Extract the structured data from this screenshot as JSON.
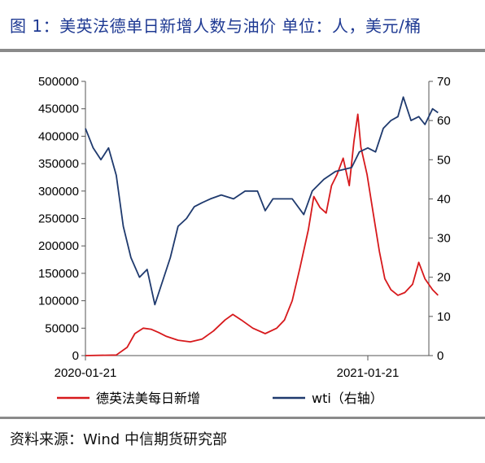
{
  "header": {
    "title": "图 1：美英法德单日新增人数与油价   单位：人，美元/桶"
  },
  "footer": {
    "source": "资料来源：Wind   中信期货研究部"
  },
  "chart_data": {
    "type": "line",
    "title": "美英法德单日新增人数与油价",
    "unit": "单位：人，美元/桶",
    "x_ticks": [
      "2020-01-21",
      "2021-01-21"
    ],
    "y_left": {
      "min": 0,
      "max": 500000,
      "ticks": [
        0,
        50000,
        100000,
        150000,
        200000,
        250000,
        300000,
        350000,
        400000,
        450000,
        500000
      ]
    },
    "y_right": {
      "min": 0,
      "max": 70,
      "ticks": [
        0,
        10,
        20,
        30,
        40,
        50,
        60,
        70
      ]
    },
    "legend_position": "bottom",
    "grid": false,
    "series": [
      {
        "name": "德英法美每日新增",
        "axis": "left",
        "color": "#d7191c",
        "points": [
          [
            "2020-01-21",
            0
          ],
          [
            "2020-03-01",
            1000
          ],
          [
            "2020-03-15",
            15000
          ],
          [
            "2020-03-25",
            40000
          ],
          [
            "2020-04-05",
            50000
          ],
          [
            "2020-04-15",
            48000
          ],
          [
            "2020-04-25",
            42000
          ],
          [
            "2020-05-05",
            35000
          ],
          [
            "2020-05-20",
            28000
          ],
          [
            "2020-06-05",
            25000
          ],
          [
            "2020-06-20",
            30000
          ],
          [
            "2020-07-05",
            45000
          ],
          [
            "2020-07-20",
            65000
          ],
          [
            "2020-07-30",
            75000
          ],
          [
            "2020-08-10",
            65000
          ],
          [
            "2020-08-25",
            50000
          ],
          [
            "2020-09-10",
            40000
          ],
          [
            "2020-09-25",
            50000
          ],
          [
            "2020-10-05",
            65000
          ],
          [
            "2020-10-15",
            100000
          ],
          [
            "2020-10-25",
            160000
          ],
          [
            "2020-11-05",
            230000
          ],
          [
            "2020-11-12",
            290000
          ],
          [
            "2020-11-20",
            270000
          ],
          [
            "2020-11-28",
            260000
          ],
          [
            "2020-12-05",
            310000
          ],
          [
            "2020-12-12",
            330000
          ],
          [
            "2020-12-20",
            360000
          ],
          [
            "2020-12-28",
            310000
          ],
          [
            "2021-01-03",
            390000
          ],
          [
            "2021-01-08",
            440000
          ],
          [
            "2021-01-12",
            380000
          ],
          [
            "2021-01-20",
            330000
          ],
          [
            "2021-01-28",
            260000
          ],
          [
            "2021-02-05",
            190000
          ],
          [
            "2021-02-12",
            140000
          ],
          [
            "2021-02-20",
            120000
          ],
          [
            "2021-03-01",
            110000
          ],
          [
            "2021-03-10",
            115000
          ],
          [
            "2021-03-20",
            130000
          ],
          [
            "2021-03-28",
            170000
          ],
          [
            "2021-04-05",
            140000
          ],
          [
            "2021-04-15",
            120000
          ],
          [
            "2021-04-22",
            110000
          ]
        ]
      },
      {
        "name": "wti（右轴）",
        "axis": "right",
        "color": "#1f3a6e",
        "points": [
          [
            "2020-01-21",
            58
          ],
          [
            "2020-01-31",
            53
          ],
          [
            "2020-02-10",
            50
          ],
          [
            "2020-02-20",
            53
          ],
          [
            "2020-03-01",
            46
          ],
          [
            "2020-03-10",
            33
          ],
          [
            "2020-03-20",
            25
          ],
          [
            "2020-03-31",
            20
          ],
          [
            "2020-04-10",
            22
          ],
          [
            "2020-04-20",
            13
          ],
          [
            "2020-04-30",
            19
          ],
          [
            "2020-05-10",
            25
          ],
          [
            "2020-05-20",
            33
          ],
          [
            "2020-05-31",
            35
          ],
          [
            "2020-06-10",
            38
          ],
          [
            "2020-06-20",
            39
          ],
          [
            "2020-07-01",
            40
          ],
          [
            "2020-07-15",
            41
          ],
          [
            "2020-07-31",
            40
          ],
          [
            "2020-08-15",
            42
          ],
          [
            "2020-08-31",
            42
          ],
          [
            "2020-09-10",
            37
          ],
          [
            "2020-09-20",
            40
          ],
          [
            "2020-10-01",
            40
          ],
          [
            "2020-10-15",
            40
          ],
          [
            "2020-10-30",
            36
          ],
          [
            "2020-11-10",
            42
          ],
          [
            "2020-11-25",
            45
          ],
          [
            "2020-12-10",
            47
          ],
          [
            "2020-12-31",
            48
          ],
          [
            "2021-01-10",
            52
          ],
          [
            "2021-01-21",
            53
          ],
          [
            "2021-01-31",
            52
          ],
          [
            "2021-02-10",
            58
          ],
          [
            "2021-02-20",
            60
          ],
          [
            "2021-03-01",
            61
          ],
          [
            "2021-03-08",
            66
          ],
          [
            "2021-03-18",
            60
          ],
          [
            "2021-03-28",
            61
          ],
          [
            "2021-04-05",
            59
          ],
          [
            "2021-04-15",
            63
          ],
          [
            "2021-04-22",
            62
          ]
        ]
      }
    ]
  }
}
